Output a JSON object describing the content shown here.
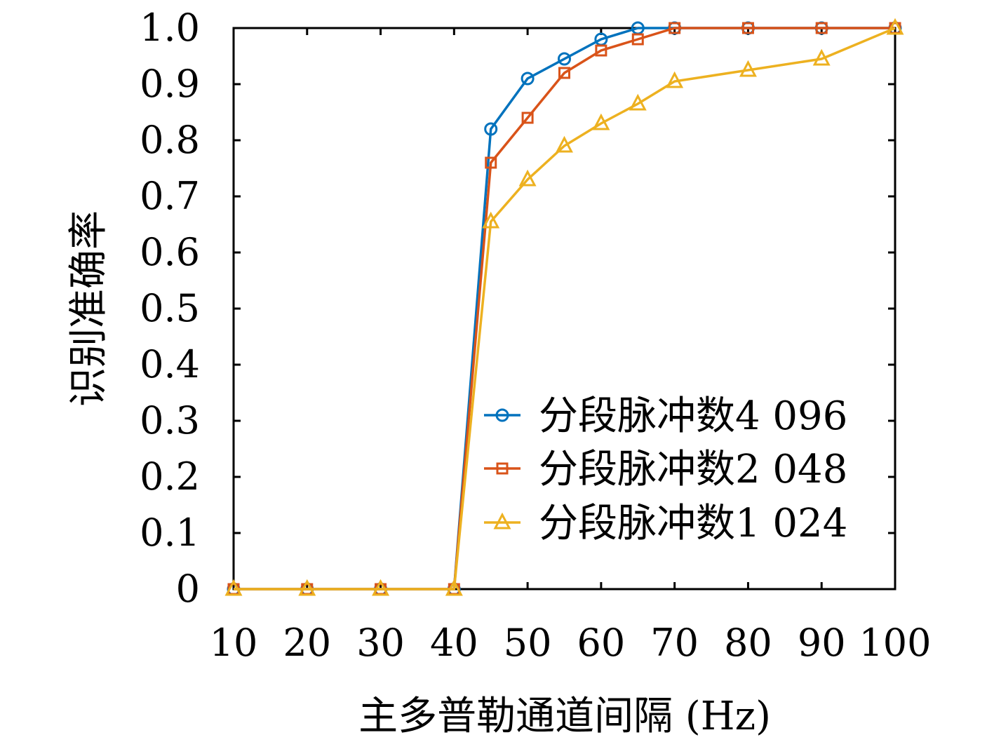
{
  "chart_data": {
    "type": "line",
    "title": "",
    "xlabel": "主多普勒通道间隔 (Hz)",
    "ylabel": "识别准确率",
    "xlim": [
      10,
      100
    ],
    "ylim": [
      0,
      1.0
    ],
    "x_ticks": [
      10,
      20,
      30,
      40,
      50,
      60,
      70,
      80,
      90,
      100
    ],
    "x_tick_labels": [
      "10",
      "20",
      "30",
      "40",
      "50",
      "60",
      "70",
      "80",
      "90",
      "100"
    ],
    "y_ticks": [
      0,
      0.1,
      0.2,
      0.3,
      0.4,
      0.5,
      0.6,
      0.7,
      0.8,
      0.9,
      1.0
    ],
    "y_tick_labels": [
      "0",
      "0.1",
      "0.2",
      "0.3",
      "0.4",
      "0.5",
      "0.6",
      "0.7",
      "0.8",
      "0.9",
      "1.0"
    ],
    "grid": false,
    "legend_position": "bottom-right",
    "x": [
      10,
      20,
      30,
      40,
      45,
      50,
      55,
      60,
      65,
      70,
      80,
      90,
      100
    ],
    "series": [
      {
        "name": "分段脉冲数4 096",
        "color": "#0072BD",
        "marker": "circle",
        "values": [
          0,
          0,
          0,
          0,
          0.82,
          0.91,
          0.945,
          0.98,
          1.0,
          1.0,
          1.0,
          1.0,
          1.0
        ]
      },
      {
        "name": "分段脉冲数2 048",
        "color": "#D95319",
        "marker": "square",
        "values": [
          0,
          0,
          0,
          0,
          0.76,
          0.84,
          0.92,
          0.96,
          0.98,
          1.0,
          1.0,
          1.0,
          1.0
        ]
      },
      {
        "name": "分段脉冲数1 024",
        "color": "#EDB120",
        "marker": "triangle",
        "values": [
          0,
          0,
          0,
          0,
          0.655,
          0.73,
          0.79,
          0.83,
          0.865,
          0.905,
          0.925,
          0.945,
          1.0
        ]
      }
    ]
  }
}
